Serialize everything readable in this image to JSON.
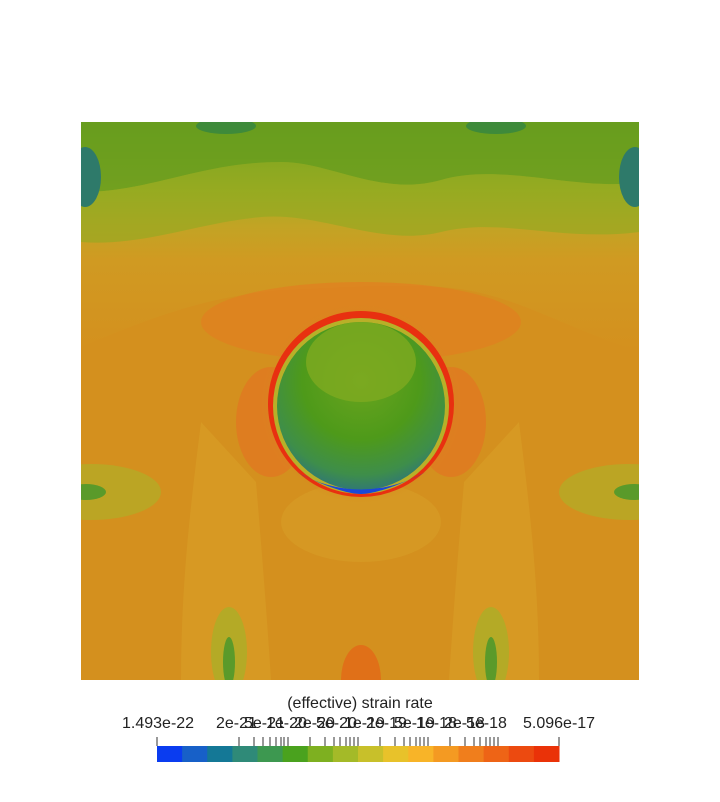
{
  "legend": {
    "title": "(effective) strain rate",
    "min_label": "1.493e-22",
    "max_label": "5.096e-17",
    "overlap_labels": [
      "2e-21",
      "5e-21",
      "1e-20",
      "2e-20",
      "5e-20",
      "1e-19",
      "2e-19",
      "5e-19",
      "1e-18",
      "2e-18",
      "5e-18"
    ],
    "colors": [
      "#0a3cf0",
      "#1760c8",
      "#147896",
      "#2f8a78",
      "#3d9850",
      "#4aa21e",
      "#7eb020",
      "#a4ba28",
      "#c8c02a",
      "#e8c22a",
      "#f8b428",
      "#f49a22",
      "#f07e1c",
      "#ee6416",
      "#ec4a10",
      "#ea3208"
    ]
  },
  "field_colors": {
    "background": "#d4901e",
    "green_dark": "#4e9a1c",
    "green_light": "#7aa822",
    "olive": "#a8ac24",
    "yellow_olive": "#c8a424",
    "orange": "#e08020",
    "orange_red": "#e86018",
    "red": "#e82c10",
    "blue": "#1a48d8",
    "teal": "#2a7a8a"
  }
}
